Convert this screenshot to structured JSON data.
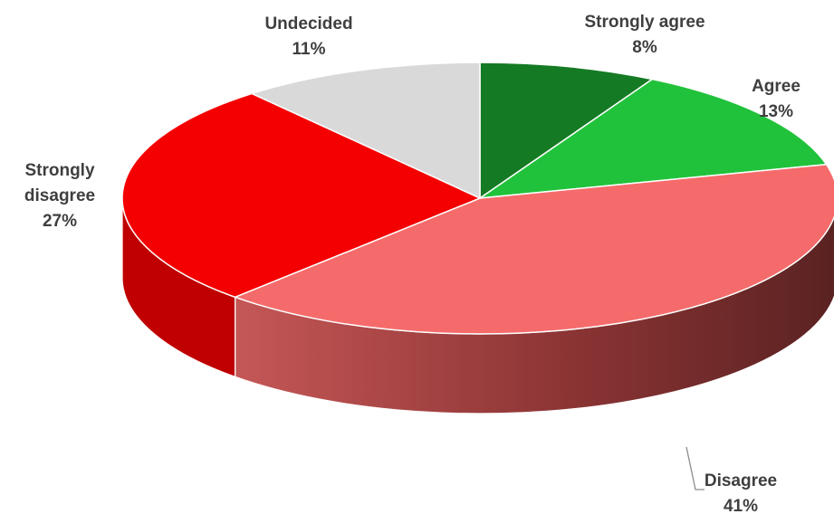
{
  "chart_data": {
    "type": "pie",
    "title": "",
    "slices": [
      {
        "label_lines": [
          "Strongly agree"
        ],
        "pct_text": "8%",
        "value": 8,
        "color": "#157a24",
        "side_color": "#0e5518"
      },
      {
        "label_lines": [
          "Agree"
        ],
        "pct_text": "13%",
        "value": 13,
        "color": "#21c23b",
        "side_color": "#178a2a"
      },
      {
        "label_lines": [
          "Disagree"
        ],
        "pct_text": "41%",
        "value": 41,
        "color": "#f56b6b",
        "side_color": "#5e2323"
      },
      {
        "label_lines": [
          "Strongly",
          "disagree"
        ],
        "pct_text": "27%",
        "value": 27,
        "color": "#f50000",
        "side_color": "#c00000"
      },
      {
        "label_lines": [
          "Undecided"
        ],
        "pct_text": "11%",
        "value": 11,
        "color": "#d9d9d9",
        "side_color": "#a5a5a5"
      }
    ],
    "legend": "none",
    "style": "3d"
  }
}
